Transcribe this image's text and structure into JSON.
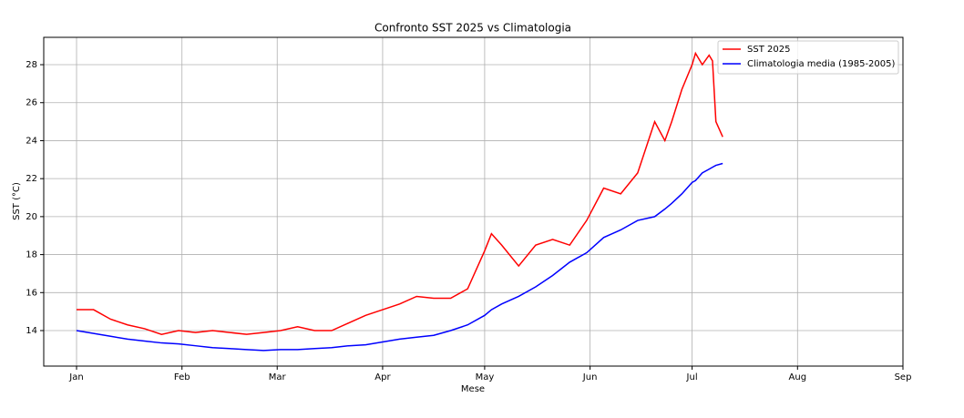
{
  "chart_data": {
    "type": "line",
    "title": "Confronto SST 2025 vs Climatologia",
    "xlabel": "Mese",
    "ylabel": "SST (°C)",
    "x": [
      0,
      5,
      10,
      15,
      20,
      25,
      30,
      35,
      40,
      45,
      50,
      55,
      60,
      65,
      70,
      75,
      80,
      85,
      90,
      95,
      100,
      105,
      110,
      115,
      120,
      122,
      125,
      130,
      135,
      140,
      145,
      150,
      155,
      160,
      165,
      170,
      173,
      175,
      178,
      181,
      182,
      184,
      186,
      187,
      188,
      190
    ],
    "series": [
      {
        "name": "SST 2025",
        "color": "#ff0000",
        "values": [
          15.1,
          15.1,
          14.6,
          14.3,
          14.1,
          13.8,
          14.0,
          13.9,
          14.0,
          13.9,
          13.8,
          13.9,
          14.0,
          14.2,
          14.0,
          14.0,
          14.4,
          14.8,
          15.1,
          15.4,
          15.8,
          15.7,
          15.7,
          16.2,
          18.2,
          19.1,
          18.5,
          17.4,
          18.5,
          18.8,
          18.5,
          19.8,
          21.5,
          21.2,
          22.3,
          25.0,
          24.0,
          25.0,
          26.7,
          28.0,
          28.6,
          28.0,
          28.5,
          28.2,
          25.0,
          24.2
        ]
      },
      {
        "name": "Climatologia media (1985-2005)",
        "color": "#0000ff",
        "values": [
          14.0,
          13.85,
          13.7,
          13.55,
          13.45,
          13.35,
          13.3,
          13.2,
          13.1,
          13.05,
          13.0,
          12.95,
          13.0,
          13.0,
          13.05,
          13.1,
          13.2,
          13.25,
          13.4,
          13.55,
          13.65,
          13.75,
          14.0,
          14.3,
          14.8,
          15.1,
          15.4,
          15.8,
          16.3,
          16.9,
          17.6,
          18.1,
          18.9,
          19.3,
          19.8,
          20.0,
          20.4,
          20.7,
          21.2,
          21.8,
          21.9,
          22.3,
          22.5,
          22.6,
          22.7,
          22.8
        ]
      }
    ],
    "xlim": [
      -9.65,
      243
    ],
    "xticks": [
      {
        "value": 0,
        "label": "Jan"
      },
      {
        "value": 31,
        "label": "Feb"
      },
      {
        "value": 59,
        "label": "Mar"
      },
      {
        "value": 90,
        "label": "Apr"
      },
      {
        "value": 120,
        "label": "May"
      },
      {
        "value": 151,
        "label": "Jun"
      },
      {
        "value": 181,
        "label": "Jul"
      },
      {
        "value": 212,
        "label": "Aug"
      },
      {
        "value": 243,
        "label": "Sep"
      }
    ],
    "ylim": [
      12.13,
      29.44
    ],
    "yticks": [
      14,
      16,
      18,
      20,
      22,
      24,
      26,
      28
    ],
    "grid": true,
    "legend": "upper right"
  }
}
